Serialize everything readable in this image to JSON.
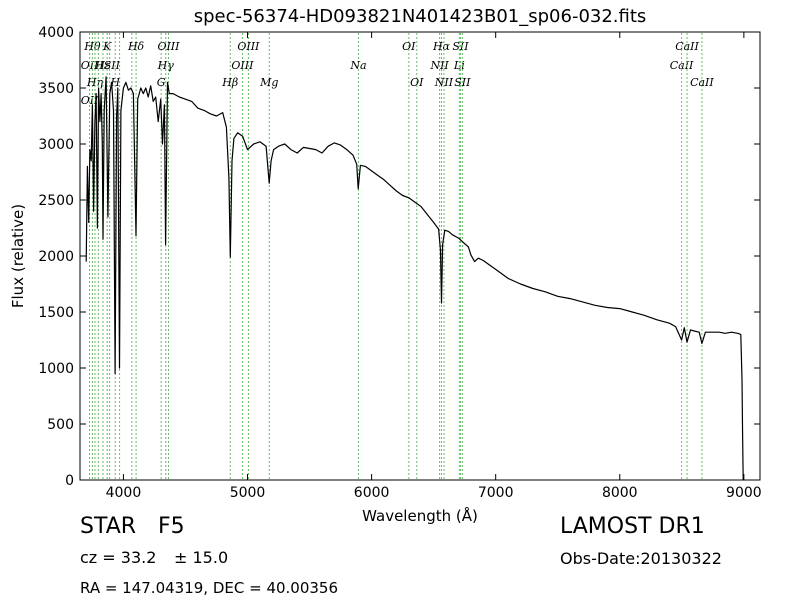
{
  "chart_data": {
    "type": "line",
    "title": "spec-56374-HD093821N401423B01_sp06-032.fits",
    "xlabel": "Wavelength (Å)",
    "ylabel": "Flux (relative)",
    "xlim": [
      3650,
      9130
    ],
    "ylim": [
      0,
      4000
    ],
    "xticks": [
      4000,
      5000,
      6000,
      7000,
      8000,
      9000
    ],
    "yticks": [
      0,
      500,
      1000,
      1500,
      2000,
      2500,
      3000,
      3500,
      4000
    ],
    "grid": false,
    "series": [
      {
        "color": "#000000",
        "points": [
          [
            3700,
            1950
          ],
          [
            3710,
            2800
          ],
          [
            3720,
            2300
          ],
          [
            3730,
            2950
          ],
          [
            3740,
            2850
          ],
          [
            3750,
            3350
          ],
          [
            3760,
            2400
          ],
          [
            3770,
            3200
          ],
          [
            3780,
            3450
          ],
          [
            3790,
            2250
          ],
          [
            3800,
            3500
          ],
          [
            3810,
            3200
          ],
          [
            3820,
            3450
          ],
          [
            3830,
            3000
          ],
          [
            3835,
            2150
          ],
          [
            3845,
            3300
          ],
          [
            3860,
            3600
          ],
          [
            3875,
            2350
          ],
          [
            3890,
            3450
          ],
          [
            3905,
            3550
          ],
          [
            3920,
            3300
          ],
          [
            3933,
            950
          ],
          [
            3945,
            3250
          ],
          [
            3955,
            3500
          ],
          [
            3968,
            1000
          ],
          [
            3980,
            3300
          ],
          [
            4000,
            3500
          ],
          [
            4020,
            3550
          ],
          [
            4040,
            3480
          ],
          [
            4060,
            3500
          ],
          [
            4080,
            3450
          ],
          [
            4101,
            2180
          ],
          [
            4115,
            3400
          ],
          [
            4140,
            3500
          ],
          [
            4160,
            3450
          ],
          [
            4180,
            3500
          ],
          [
            4200,
            3420
          ],
          [
            4220,
            3520
          ],
          [
            4240,
            3380
          ],
          [
            4260,
            3420
          ],
          [
            4280,
            3200
          ],
          [
            4300,
            3400
          ],
          [
            4315,
            3000
          ],
          [
            4330,
            3350
          ],
          [
            4340,
            2100
          ],
          [
            4355,
            3550
          ],
          [
            4370,
            3450
          ],
          [
            4400,
            3450
          ],
          [
            4450,
            3420
          ],
          [
            4500,
            3400
          ],
          [
            4550,
            3380
          ],
          [
            4600,
            3320
          ],
          [
            4650,
            3300
          ],
          [
            4700,
            3270
          ],
          [
            4750,
            3250
          ],
          [
            4800,
            3280
          ],
          [
            4830,
            3150
          ],
          [
            4850,
            2700
          ],
          [
            4861,
            1990
          ],
          [
            4875,
            2850
          ],
          [
            4890,
            3050
          ],
          [
            4920,
            3100
          ],
          [
            4960,
            3070
          ],
          [
            5000,
            2950
          ],
          [
            5050,
            3000
          ],
          [
            5100,
            3020
          ],
          [
            5150,
            2980
          ],
          [
            5175,
            2650
          ],
          [
            5190,
            2850
          ],
          [
            5210,
            2950
          ],
          [
            5250,
            2980
          ],
          [
            5300,
            3000
          ],
          [
            5350,
            2950
          ],
          [
            5400,
            2920
          ],
          [
            5450,
            2970
          ],
          [
            5500,
            2960
          ],
          [
            5550,
            2950
          ],
          [
            5600,
            2920
          ],
          [
            5650,
            2980
          ],
          [
            5700,
            3010
          ],
          [
            5750,
            2990
          ],
          [
            5800,
            2950
          ],
          [
            5850,
            2900
          ],
          [
            5880,
            2820
          ],
          [
            5892,
            2600
          ],
          [
            5910,
            2810
          ],
          [
            5950,
            2800
          ],
          [
            6000,
            2760
          ],
          [
            6050,
            2720
          ],
          [
            6100,
            2680
          ],
          [
            6150,
            2630
          ],
          [
            6200,
            2580
          ],
          [
            6250,
            2540
          ],
          [
            6300,
            2520
          ],
          [
            6350,
            2480
          ],
          [
            6400,
            2440
          ],
          [
            6450,
            2370
          ],
          [
            6500,
            2300
          ],
          [
            6540,
            2240
          ],
          [
            6555,
            2050
          ],
          [
            6563,
            1580
          ],
          [
            6572,
            2100
          ],
          [
            6590,
            2230
          ],
          [
            6620,
            2220
          ],
          [
            6650,
            2190
          ],
          [
            6700,
            2160
          ],
          [
            6750,
            2110
          ],
          [
            6780,
            2080
          ],
          [
            6800,
            2010
          ],
          [
            6830,
            1950
          ],
          [
            6860,
            1980
          ],
          [
            6900,
            1960
          ],
          [
            6950,
            1920
          ],
          [
            7000,
            1880
          ],
          [
            7050,
            1840
          ],
          [
            7100,
            1800
          ],
          [
            7200,
            1750
          ],
          [
            7300,
            1710
          ],
          [
            7400,
            1680
          ],
          [
            7500,
            1640
          ],
          [
            7600,
            1620
          ],
          [
            7700,
            1590
          ],
          [
            7800,
            1560
          ],
          [
            7900,
            1540
          ],
          [
            8000,
            1530
          ],
          [
            8100,
            1500
          ],
          [
            8200,
            1470
          ],
          [
            8300,
            1430
          ],
          [
            8400,
            1400
          ],
          [
            8450,
            1370
          ],
          [
            8498,
            1250
          ],
          [
            8520,
            1360
          ],
          [
            8542,
            1230
          ],
          [
            8570,
            1340
          ],
          [
            8600,
            1330
          ],
          [
            8640,
            1320
          ],
          [
            8662,
            1220
          ],
          [
            8690,
            1320
          ],
          [
            8750,
            1320
          ],
          [
            8800,
            1320
          ],
          [
            8850,
            1310
          ],
          [
            8900,
            1320
          ],
          [
            8950,
            1310
          ],
          [
            8975,
            1300
          ],
          [
            8985,
            900
          ],
          [
            8990,
            400
          ],
          [
            8995,
            0
          ]
        ]
      }
    ],
    "line_markers": [
      {
        "wavelength": 3727,
        "labels": [
          {
            "text": "OII",
            "row": 2
          },
          {
            "text": "OII",
            "row": 4
          }
        ]
      },
      {
        "wavelength": 3750,
        "labels": [
          {
            "text": "Hθ",
            "row": 1
          }
        ]
      },
      {
        "wavelength": 3771,
        "labels": [
          {
            "text": "Hη",
            "row": 3
          }
        ]
      },
      {
        "wavelength": 3798,
        "labels": []
      },
      {
        "wavelength": 3835,
        "labels": [
          {
            "text": "Hε",
            "row": 2
          }
        ]
      },
      {
        "wavelength": 3869,
        "labels": [
          {
            "text": "K",
            "row": 1
          }
        ]
      },
      {
        "wavelength": 3889,
        "labels": [
          {
            "text": "ISII",
            "row": 2
          }
        ]
      },
      {
        "wavelength": 3934,
        "labels": [
          {
            "text": "H",
            "row": 3
          }
        ]
      },
      {
        "wavelength": 3969,
        "labels": []
      },
      {
        "wavelength": 4068,
        "labels": []
      },
      {
        "wavelength": 4102,
        "labels": [
          {
            "text": "Hδ",
            "row": 1
          }
        ]
      },
      {
        "wavelength": 4304,
        "labels": [
          {
            "text": "G",
            "row": 3
          }
        ]
      },
      {
        "wavelength": 4341,
        "labels": [
          {
            "text": "Hγ",
            "row": 2
          }
        ]
      },
      {
        "wavelength": 4363,
        "labels": [
          {
            "text": "OIII",
            "row": 1
          }
        ]
      },
      {
        "wavelength": 4861,
        "labels": [
          {
            "text": "Hβ",
            "row": 3
          }
        ]
      },
      {
        "wavelength": 4959,
        "labels": [
          {
            "text": "OIII",
            "row": 2
          }
        ]
      },
      {
        "wavelength": 5007,
        "labels": [
          {
            "text": "OIII",
            "row": 1
          }
        ]
      },
      {
        "wavelength": 5175,
        "labels": [
          {
            "text": "Mg",
            "row": 3
          }
        ]
      },
      {
        "wavelength": 5894,
        "labels": [
          {
            "text": "Na",
            "row": 2
          }
        ]
      },
      {
        "wavelength": 6300,
        "labels": [
          {
            "text": "OI",
            "row": 1
          }
        ]
      },
      {
        "wavelength": 6364,
        "labels": [
          {
            "text": "OI",
            "row": 3
          }
        ]
      },
      {
        "wavelength": 6548,
        "labels": [
          {
            "text": "NII",
            "row": 2
          }
        ]
      },
      {
        "wavelength": 6563,
        "labels": [
          {
            "text": "Hα",
            "row": 1
          }
        ]
      },
      {
        "wavelength": 6583,
        "labels": [
          {
            "text": "NII",
            "row": 3
          }
        ]
      },
      {
        "wavelength": 6707,
        "labels": [
          {
            "text": "Li",
            "row": 2
          }
        ]
      },
      {
        "wavelength": 6716,
        "labels": [
          {
            "text": "SII",
            "row": 1
          }
        ]
      },
      {
        "wavelength": 6731,
        "labels": [
          {
            "text": "SII",
            "row": 3
          }
        ]
      },
      {
        "wavelength": 8498,
        "labels": [
          {
            "text": "CaII",
            "row": 2
          }
        ]
      },
      {
        "wavelength": 8542,
        "labels": [
          {
            "text": "CaII",
            "row": 1
          }
        ]
      },
      {
        "wavelength": 8662,
        "labels": [
          {
            "text": "CaII",
            "row": 3
          }
        ]
      }
    ]
  },
  "info": {
    "class": "STAR",
    "subclass": "F5",
    "cz_label": "cz = 33.2",
    "cz_err": "± 15.0",
    "coords": "RA = 147.04319, DEC = 40.00356",
    "survey": "LAMOST DR1",
    "obs_date": "Obs-Date:20130322"
  }
}
